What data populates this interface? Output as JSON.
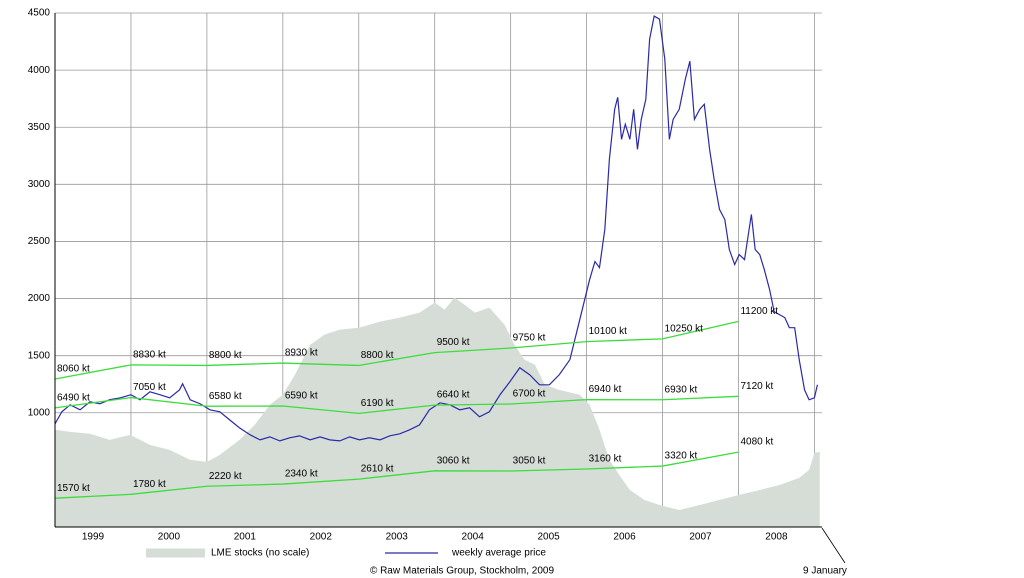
{
  "chart_data": {
    "type": "line",
    "xlim": [
      1999,
      2009.1
    ],
    "xticks": [
      {
        "value": 1999.5,
        "label": "1999"
      },
      {
        "value": 2000.5,
        "label": "2000"
      },
      {
        "value": 2001.5,
        "label": "2001"
      },
      {
        "value": 2002.5,
        "label": "2002"
      },
      {
        "value": 2003.5,
        "label": "2003"
      },
      {
        "value": 2004.5,
        "label": "2004"
      },
      {
        "value": 2005.5,
        "label": "2005"
      },
      {
        "value": 2006.5,
        "label": "2006"
      },
      {
        "value": 2007.5,
        "label": "2007"
      },
      {
        "value": 2008.5,
        "label": "2008"
      }
    ],
    "ylim": [
      0,
      4500
    ],
    "yticks": [
      1000,
      1500,
      2000,
      2500,
      3000,
      3500,
      4000,
      4500
    ],
    "y2lim": [
      0,
      28000
    ],
    "grid": true,
    "credit": "© Raw Materials Group, Stockholm, 2009",
    "annotation": "9 January",
    "series": [
      {
        "name": "LME stocks (no scale)",
        "color": "#d6ddd6",
        "area": true,
        "x": [
          1999.0,
          1999.2,
          1999.46,
          1999.72,
          1999.99,
          2000.25,
          2000.51,
          2000.78,
          2001.0,
          2001.17,
          2001.43,
          2001.63,
          2001.83,
          2002.0,
          2002.16,
          2002.36,
          2002.55,
          2002.75,
          2003.01,
          2003.28,
          2003.54,
          2003.8,
          2004.0,
          2004.13,
          2004.26,
          2004.39,
          2004.53,
          2004.72,
          2004.92,
          2005.05,
          2005.18,
          2005.32,
          2005.45,
          2005.64,
          2005.91,
          2006.04,
          2006.17,
          2006.3,
          2006.43,
          2006.57,
          2006.76,
          2006.96,
          2007.22,
          2007.49,
          2007.75,
          2008.01,
          2008.28,
          2008.54,
          2008.8,
          2008.93,
          2009.0,
          2009.07
        ],
        "values": [
          851,
          833,
          816,
          763,
          807,
          719,
          675,
          588,
          570,
          631,
          763,
          894,
          1070,
          1158,
          1333,
          1596,
          1684,
          1728,
          1745,
          1798,
          1833,
          1877,
          1964,
          1903,
          2008,
          1947,
          1877,
          1921,
          1771,
          1596,
          1465,
          1421,
          1245,
          1201,
          1158,
          1070,
          851,
          588,
          456,
          324,
          237,
          193,
          149,
          193,
          237,
          281,
          324,
          368,
          430,
          500,
          649,
          658
        ]
      },
      {
        "name": "weekly average price",
        "color": "#2a2aa8",
        "x": [
          1999.0,
          1999.09,
          1999.2,
          1999.33,
          1999.46,
          1999.59,
          1999.72,
          1999.86,
          2000.0,
          2000.12,
          2000.25,
          2000.38,
          2000.51,
          2000.64,
          2000.68,
          2000.78,
          2000.91,
          2001.04,
          2001.17,
          2001.3,
          2001.43,
          2001.57,
          2001.7,
          2001.83,
          2001.96,
          2002.09,
          2002.22,
          2002.36,
          2002.49,
          2002.62,
          2002.75,
          2002.88,
          2003.01,
          2003.14,
          2003.28,
          2003.41,
          2003.54,
          2003.67,
          2003.8,
          2003.93,
          2004.07,
          2004.2,
          2004.33,
          2004.46,
          2004.59,
          2004.72,
          2004.86,
          2004.99,
          2005.12,
          2005.25,
          2005.38,
          2005.51,
          2005.64,
          2005.78,
          2005.91,
          2006.04,
          2006.11,
          2006.17,
          2006.24,
          2006.3,
          2006.37,
          2006.41,
          2006.46,
          2006.51,
          2006.57,
          2006.62,
          2006.67,
          2006.72,
          2006.78,
          2006.83,
          2006.89,
          2006.96,
          2007.03,
          2007.09,
          2007.14,
          2007.22,
          2007.3,
          2007.36,
          2007.42,
          2007.49,
          2007.55,
          2007.62,
          2007.68,
          2007.75,
          2007.82,
          2007.88,
          2007.95,
          2008.01,
          2008.08,
          2008.14,
          2008.17,
          2008.22,
          2008.28,
          2008.34,
          2008.41,
          2008.47,
          2008.54,
          2008.61,
          2008.67,
          2008.74,
          2008.8,
          2008.87,
          2008.93,
          2009.0,
          2009.04
        ],
        "values": [
          903,
          1009,
          1070,
          1026,
          1096,
          1079,
          1114,
          1131,
          1158,
          1114,
          1184,
          1158,
          1131,
          1201,
          1254,
          1114,
          1079,
          1026,
          1009,
          938,
          868,
          807,
          763,
          789,
          754,
          781,
          798,
          763,
          789,
          763,
          754,
          789,
          763,
          781,
          763,
          798,
          816,
          851,
          894,
          1026,
          1087,
          1070,
          1026,
          1044,
          965,
          1009,
          1158,
          1272,
          1394,
          1333,
          1245,
          1245,
          1333,
          1465,
          1815,
          2166,
          2324,
          2271,
          2605,
          3219,
          3657,
          3762,
          3394,
          3526,
          3394,
          3657,
          3306,
          3569,
          3745,
          4271,
          4473,
          4446,
          4096,
          3394,
          3569,
          3657,
          3920,
          4078,
          3569,
          3657,
          3701,
          3306,
          3043,
          2780,
          2692,
          2429,
          2298,
          2385,
          2341,
          2605,
          2736,
          2429,
          2385,
          2254,
          2078,
          1885,
          1859,
          1833,
          1745,
          1745,
          1465,
          1201,
          1114,
          1131,
          1245
        ]
      },
      {
        "color": "#3cdc3c",
        "axis": "y2",
        "x": [
          1999,
          2000,
          2001,
          2002,
          2003,
          2004,
          2005,
          2006,
          2007,
          2008
        ],
        "values": [
          8060,
          8830,
          8800,
          8930,
          8800,
          9500,
          9750,
          10100,
          10250,
          11200
        ],
        "value_labels": [
          "8060 kt",
          "8830 kt",
          "8800 kt",
          "8930 kt",
          "8800 kt",
          "9500 kt",
          "9750 kt",
          "10100 kt",
          "10250 kt",
          "11200 kt"
        ]
      },
      {
        "color": "#3cdc3c",
        "axis": "y2",
        "x": [
          1999,
          2000,
          2001,
          2002,
          2003,
          2004,
          2005,
          2006,
          2007,
          2008
        ],
        "values": [
          6490,
          7050,
          6580,
          6590,
          6190,
          6640,
          6700,
          6940,
          6930,
          7120
        ],
        "value_labels": [
          "6490 kt",
          "7050 kt",
          "6580 kt",
          "6590 kt",
          "6190 kt",
          "6640 kt",
          "6700 kt",
          "6940 kt",
          "6930 kt",
          "7120 kt"
        ]
      },
      {
        "color": "#3cdc3c",
        "axis": "y2",
        "x": [
          1999,
          2000,
          2001,
          2002,
          2003,
          2004,
          2005,
          2006,
          2007,
          2008
        ],
        "values": [
          1570,
          1780,
          2220,
          2340,
          2610,
          3060,
          3050,
          3160,
          3320,
          4080
        ],
        "value_labels": [
          "1570 kt",
          "1780 kt",
          "2220 kt",
          "2340 kt",
          "2610 kt",
          "3060 kt",
          "3050 kt",
          "3160 kt",
          "3320 kt",
          "4080 kt"
        ]
      }
    ]
  }
}
